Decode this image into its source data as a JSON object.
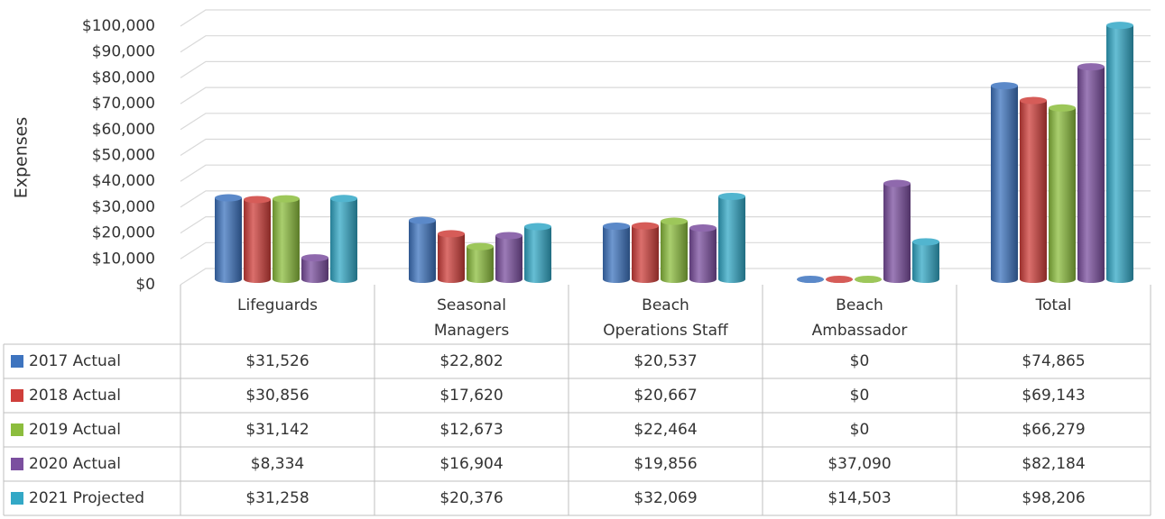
{
  "chart_data": {
    "type": "bar3d",
    "y_axis_label": "Expenses",
    "categories": [
      [
        "Lifeguards"
      ],
      [
        "Seasonal",
        "Managers"
      ],
      [
        "Beach",
        "Operations Staff"
      ],
      [
        "Beach",
        "Ambassador"
      ],
      [
        "Total"
      ]
    ],
    "ylim": [
      0,
      100000
    ],
    "yticks": [
      {
        "value": 0,
        "label": "$0"
      },
      {
        "value": 10000,
        "label": "$10,000"
      },
      {
        "value": 20000,
        "label": "$20,000"
      },
      {
        "value": 30000,
        "label": "$30,000"
      },
      {
        "value": 40000,
        "label": "$40,000"
      },
      {
        "value": 50000,
        "label": "$50,000"
      },
      {
        "value": 60000,
        "label": "$60,000"
      },
      {
        "value": 70000,
        "label": "$70,000"
      },
      {
        "value": 80000,
        "label": "$80,000"
      },
      {
        "value": 90000,
        "label": "$90,000"
      },
      {
        "value": 100000,
        "label": "$100,000"
      }
    ],
    "grid": true,
    "series": [
      {
        "name": "2017 Actual",
        "color": "#3e74bf",
        "values": [
          31526,
          22802,
          20537,
          0,
          74865
        ],
        "value_labels": [
          "$31,526",
          "$22,802",
          "$20,537",
          "$0",
          "$74,865"
        ]
      },
      {
        "name": "2018 Actual",
        "color": "#cf3f3b",
        "values": [
          30856,
          17620,
          20667,
          0,
          69143
        ],
        "value_labels": [
          "$30,856",
          "$17,620",
          "$20,667",
          "$0",
          "$69,143"
        ]
      },
      {
        "name": "2019 Actual",
        "color": "#8cbd3d",
        "values": [
          31142,
          12673,
          22464,
          0,
          66279
        ],
        "value_labels": [
          "$31,142",
          "$12,673",
          "$22,464",
          "$0",
          "$66,279"
        ]
      },
      {
        "name": "2020 Actual",
        "color": "#7b4f9f",
        "values": [
          8334,
          16904,
          19856,
          37090,
          82184
        ],
        "value_labels": [
          "$8,334",
          "$16,904",
          "$19,856",
          "$37,090",
          "$82,184"
        ]
      },
      {
        "name": "2021 Projected",
        "color": "#33a8c6",
        "values": [
          31258,
          20376,
          32069,
          14503,
          98206
        ],
        "value_labels": [
          "$31,258",
          "$20,376",
          "$32,069",
          "$14,503",
          "$98,206"
        ]
      }
    ]
  }
}
